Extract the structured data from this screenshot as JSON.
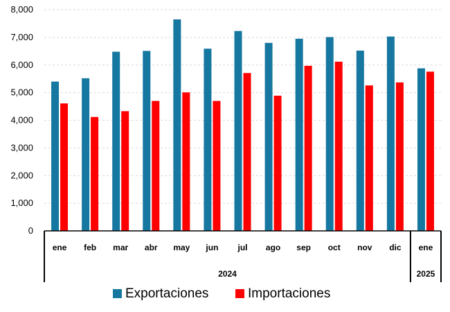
{
  "chart_data": {
    "type": "bar",
    "title": "",
    "xlabel": "",
    "ylabel": "",
    "ylim": [
      0,
      8000
    ],
    "yticks": [
      "0",
      "1,000",
      "2,000",
      "3,000",
      "4,000",
      "5,000",
      "6,000",
      "7,000",
      "8,000"
    ],
    "categories": [
      "ene",
      "feb",
      "mar",
      "abr",
      "may",
      "jun",
      "jul",
      "ago",
      "sep",
      "oct",
      "nov",
      "dic",
      "ene"
    ],
    "groups": [
      {
        "label": "2024",
        "count": 12
      },
      {
        "label": "2025",
        "count": 1
      }
    ],
    "series": [
      {
        "name": "Exportaciones",
        "color": "#1677a0",
        "values": [
          5400,
          5520,
          6480,
          6510,
          7650,
          6590,
          7230,
          6800,
          6950,
          7010,
          6520,
          7030,
          5880
        ]
      },
      {
        "name": "Importaciones",
        "color": "#ff0000",
        "values": [
          4610,
          4120,
          4330,
          4700,
          5010,
          4700,
          5710,
          4890,
          5970,
          6120,
          5260,
          5370,
          5760
        ]
      }
    ],
    "grid": true,
    "legend": "bottom"
  }
}
